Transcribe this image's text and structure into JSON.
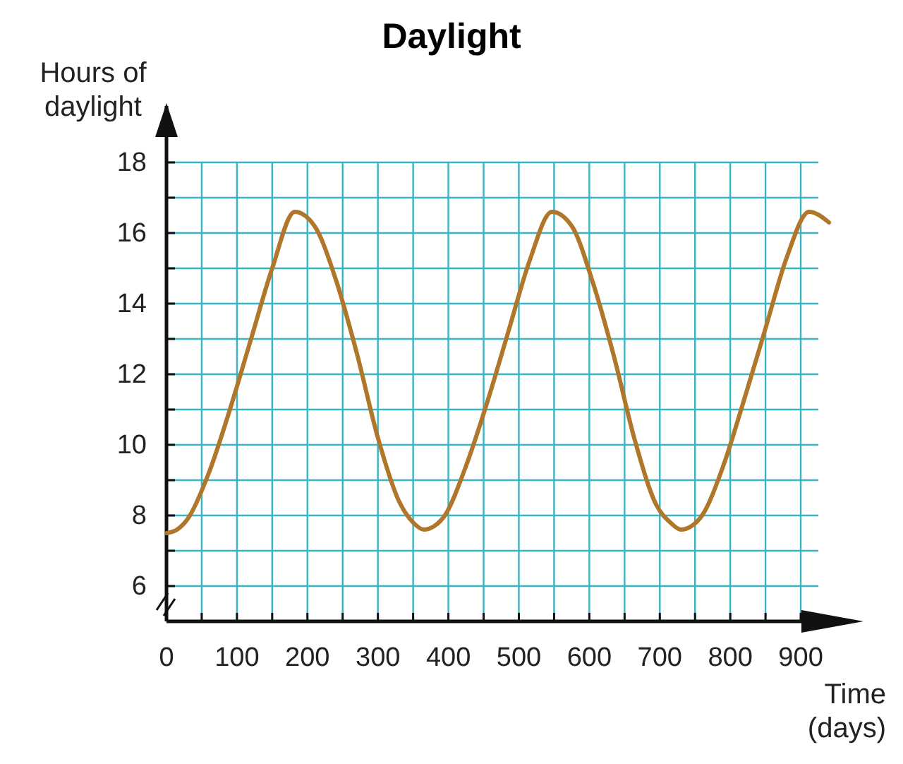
{
  "chart_data": {
    "type": "line",
    "title": "Daylight",
    "xlabel": "Time\n(days)",
    "ylabel": "Hours of\ndaylight",
    "x": [
      0,
      15,
      30,
      60,
      90,
      120,
      150,
      182,
      210,
      240,
      270,
      300,
      330,
      350,
      365,
      380,
      395,
      425,
      455,
      485,
      515,
      547,
      575,
      605,
      635,
      665,
      695,
      715,
      730,
      745,
      760,
      790,
      820,
      850,
      880,
      912,
      940
    ],
    "series": [
      {
        "color": "#b0762a",
        "values": [
          7.5,
          7.6,
          7.9,
          9.2,
          11.0,
          13.0,
          15.0,
          16.6,
          16.2,
          14.7,
          12.6,
          10.2,
          8.4,
          7.8,
          7.6,
          7.7,
          8.0,
          9.4,
          11.2,
          13.2,
          15.2,
          16.6,
          16.2,
          14.6,
          12.5,
          10.1,
          8.3,
          7.8,
          7.6,
          7.7,
          8.0,
          9.4,
          11.3,
          13.3,
          15.3,
          16.6,
          16.3
        ]
      }
    ],
    "xlim": [
      0,
      945
    ],
    "ylim": [
      5,
      19.6
    ],
    "xticks": [
      0,
      {
        "value": 50,
        "label": null
      },
      100,
      {
        "value": 150,
        "label": null
      },
      200,
      {
        "value": 250,
        "label": null
      },
      300,
      {
        "value": 350,
        "label": null
      },
      400,
      {
        "value": 450,
        "label": null
      },
      500,
      {
        "value": 550,
        "label": null
      },
      600,
      {
        "value": 650,
        "label": null
      },
      700,
      {
        "value": 750,
        "label": null
      },
      800,
      {
        "value": 850,
        "label": null
      },
      900
    ],
    "yticks": [
      6,
      {
        "value": 7,
        "label": null
      },
      8,
      {
        "value": 9,
        "label": null
      },
      10,
      {
        "value": 11,
        "label": null
      },
      12,
      {
        "value": 13,
        "label": null
      },
      14,
      {
        "value": 15,
        "label": null
      },
      16,
      {
        "value": 17,
        "label": null
      },
      18
    ],
    "grid": true,
    "marker": "none",
    "line_style": "solid"
  }
}
